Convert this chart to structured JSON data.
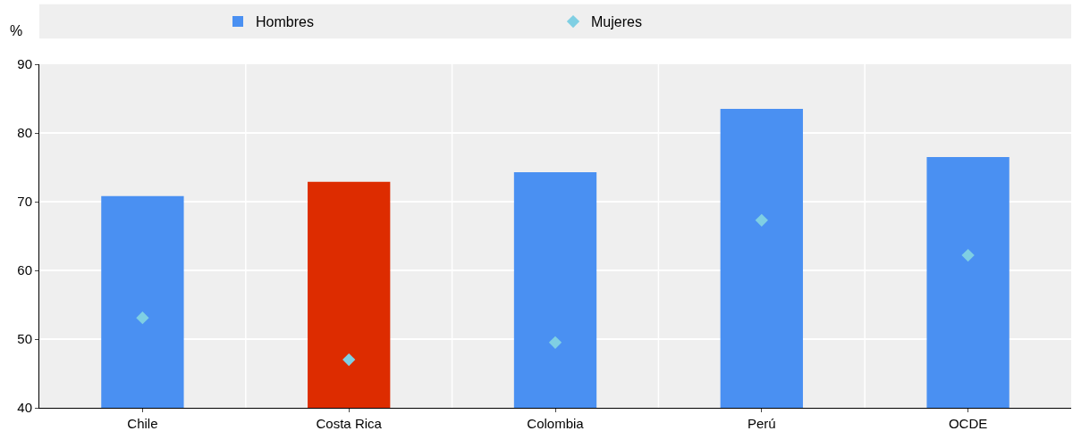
{
  "chart_data": {
    "type": "bar",
    "ylabel": "%",
    "categories": [
      "Chile",
      "Costa Rica",
      "Colombia",
      "Perú",
      "OCDE"
    ],
    "series": [
      {
        "name": "Hombres",
        "color": "#4a90f2",
        "colors": [
          null,
          "#dd2c00",
          null,
          null,
          null
        ],
        "values": [
          70.8,
          72.9,
          74.3,
          83.5,
          76.5
        ]
      },
      {
        "name": "Mujeres",
        "type": "scatter",
        "color": "#7fcfe3",
        "x": [
          "Chile",
          "Costa Rica",
          "Colombia",
          "Perú",
          "OCDE"
        ],
        "values": [
          53.1,
          47.0,
          49.5,
          67.3,
          62.2
        ]
      }
    ],
    "marker": "diamond",
    "ylim": [
      40,
      90
    ],
    "yticks": [
      40,
      50,
      60,
      70,
      80,
      90
    ],
    "grid": true,
    "legend": "top"
  }
}
